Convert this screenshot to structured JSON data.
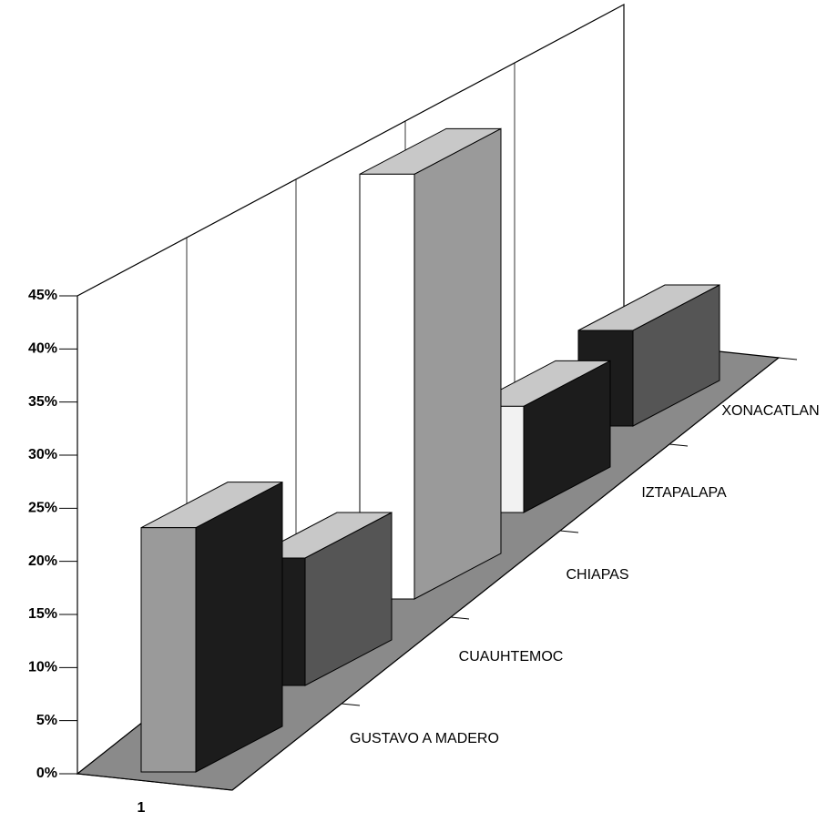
{
  "chart_data": {
    "type": "bar3d",
    "categories": [
      "GUSTAVO A MADERO",
      "CUAUHTEMOC",
      "CHIAPAS",
      "IZTAPALAPA",
      "XONACATLAN"
    ],
    "values": [
      23,
      12,
      40,
      10,
      9
    ],
    "colors": [
      "#9a9a9a",
      "#1c1c1c",
      "#ffffff",
      "#f2f2f2",
      "#1c1c1c"
    ],
    "x_categories": [
      "1"
    ],
    "ylim": [
      0,
      45
    ],
    "yticks": [
      {
        "value": 0,
        "label": "0%"
      },
      {
        "value": 5,
        "label": "5%"
      },
      {
        "value": 10,
        "label": "10%"
      },
      {
        "value": 15,
        "label": "15%"
      },
      {
        "value": 20,
        "label": "20%"
      },
      {
        "value": 25,
        "label": "25%"
      },
      {
        "value": 30,
        "label": "30%"
      },
      {
        "value": 35,
        "label": "35%"
      },
      {
        "value": 40,
        "label": "40%"
      },
      {
        "value": 45,
        "label": "45%"
      }
    ],
    "grid": true
  }
}
